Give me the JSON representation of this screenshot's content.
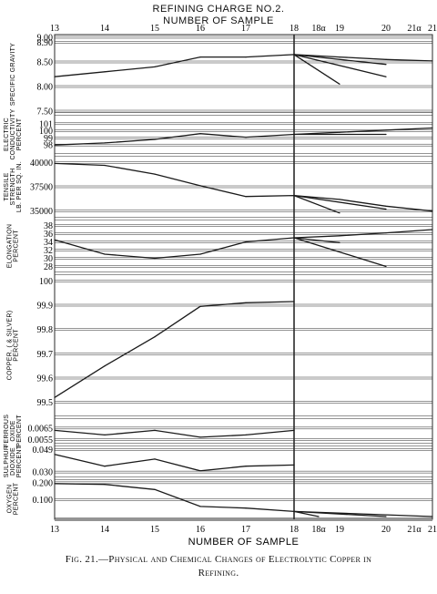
{
  "header": {
    "title": "REFINING CHARGE NO.2.",
    "subtitle": "NUMBER OF SAMPLE"
  },
  "caption": {
    "line1": "Fig. 21.—Physical and Chemical Changes of Electrolytic Copper in",
    "line2": "Refining."
  },
  "colors": {
    "line": "#1a1a1a",
    "grid": "#2a2a2a"
  },
  "chart_data": {
    "type": "line",
    "xlabel": "NUMBER OF SAMPLE",
    "x_categories": [
      "13",
      "14",
      "15",
      "16",
      "17",
      "18",
      "18α",
      "19",
      "20",
      "21α",
      "21"
    ],
    "top_x_labels": [
      "13",
      "14",
      "15",
      "16",
      "17",
      "18",
      "18α",
      "19",
      "20",
      "21α",
      "21"
    ],
    "panels": [
      {
        "id": "sg",
        "ylabel": [
          "SPECIFIC GRAVITY"
        ],
        "ylim": [
          7.5,
          9.0
        ],
        "ticks": [
          "9.00",
          "8.90",
          "8.50",
          "8.00",
          "7.50"
        ],
        "tick_values": [
          9.0,
          8.9,
          8.5,
          8.0,
          7.5
        ],
        "series": [
          {
            "x": [
              "13",
              "14",
              "15",
              "16",
              "17",
              "18",
              "19",
              "20",
              "21"
            ],
            "y": [
              8.2,
              8.3,
              8.4,
              8.6,
              8.6,
              8.65,
              8.6,
              8.55,
              8.52
            ]
          },
          {
            "x": [
              "18",
              "19"
            ],
            "y": [
              8.65,
              8.05
            ]
          },
          {
            "x": [
              "18",
              "20"
            ],
            "y": [
              8.65,
              8.2
            ]
          },
          {
            "x": [
              "18",
              "20"
            ],
            "y": [
              8.65,
              8.45
            ]
          }
        ]
      },
      {
        "id": "ec",
        "ylabel": [
          "ELECTRIC",
          "CONDUCTIVITY",
          "PERCENT"
        ],
        "ylim": [
          97,
          102
        ],
        "ticks": [
          "101",
          "100",
          "99",
          "98"
        ],
        "tick_values": [
          101,
          100,
          99,
          98
        ],
        "series": [
          {
            "x": [
              "13",
              "14",
              "15",
              "16",
              "17",
              "18",
              "19",
              "20",
              "21"
            ],
            "y": [
              98.0,
              98.3,
              98.8,
              99.6,
              99.1,
              99.5,
              99.8,
              100.1,
              100.4
            ]
          },
          {
            "x": [
              "18",
              "20"
            ],
            "y": [
              99.5,
              99.5
            ]
          }
        ]
      },
      {
        "id": "ts",
        "ylabel": [
          "TENSILE",
          "STRENGTH",
          "LB. PER SQ. IN."
        ],
        "ylim": [
          34500,
          40500
        ],
        "ticks": [
          "40000",
          "37500",
          "35000"
        ],
        "tick_values": [
          40000,
          37500,
          35000
        ],
        "series": [
          {
            "x": [
              "13",
              "14",
              "15",
              "16",
              "17",
              "18",
              "19",
              "20",
              "21"
            ],
            "y": [
              39900,
              39700,
              38800,
              37600,
              36500,
              36600,
              36200,
              35500,
              35000
            ]
          },
          {
            "x": [
              "18",
              "19"
            ],
            "y": [
              36600,
              34800
            ]
          },
          {
            "x": [
              "18",
              "20"
            ],
            "y": [
              36600,
              35200
            ]
          }
        ]
      },
      {
        "id": "el",
        "ylabel": [
          "ELONGATION",
          "PERCENT"
        ],
        "ylim": [
          27,
          39
        ],
        "ticks": [
          "38",
          "36",
          "34",
          "32",
          "30",
          "28"
        ],
        "tick_values": [
          38,
          36,
          34,
          32,
          30,
          28
        ],
        "series": [
          {
            "x": [
              "13",
              "14",
              "15",
              "16",
              "17",
              "18",
              "19",
              "20",
              "21"
            ],
            "y": [
              34.5,
              31.0,
              30.0,
              31.0,
              34.0,
              35.0,
              35.5,
              36.2,
              37.0
            ]
          },
          {
            "x": [
              "18",
              "19"
            ],
            "y": [
              35.0,
              33.8
            ]
          },
          {
            "x": [
              "18",
              "20"
            ],
            "y": [
              35.0,
              28.0
            ]
          }
        ]
      },
      {
        "id": "cu",
        "ylabel": [
          "COPPER, ( & SILVER)",
          "PERCENT"
        ],
        "ylim": [
          99.45,
          100.02
        ],
        "ticks": [
          "100",
          "99.9",
          "99.8",
          "99.7",
          "99.6",
          "99.5"
        ],
        "tick_values": [
          100.0,
          99.9,
          99.8,
          99.7,
          99.6,
          99.5
        ],
        "series": [
          {
            "x": [
              "13",
              "14",
              "15",
              "16",
              "17",
              "18"
            ],
            "y": [
              99.52,
              99.65,
              99.77,
              99.895,
              99.91,
              99.915
            ]
          }
        ]
      },
      {
        "id": "fe",
        "ylabel": [
          "FERROUS",
          "OXIDE",
          "PERCENT"
        ],
        "ylim": [
          0.0053,
          0.0072
        ],
        "ticks": [
          "0.0065",
          "0.0055"
        ],
        "tick_values": [
          0.0065,
          0.0055
        ],
        "series": [
          {
            "x": [
              "13",
              "14",
              "15",
              "16",
              "17",
              "18"
            ],
            "y": [
              0.0063,
              0.0059,
              0.0063,
              0.0057,
              0.0059,
              0.0063
            ]
          }
        ]
      },
      {
        "id": "so",
        "ylabel": [
          "SULPHUR",
          "DIOXIDE",
          "PERCENT"
        ],
        "ylim": [
          0.027,
          0.051
        ],
        "ticks": [
          "0.049",
          "0.030"
        ],
        "tick_values": [
          0.049,
          0.03
        ],
        "series": [
          {
            "x": [
              "13",
              "14",
              "15",
              "16",
              "17",
              "18"
            ],
            "y": [
              0.045,
              0.035,
              0.041,
              0.031,
              0.035,
              0.036
            ]
          }
        ]
      },
      {
        "id": "ox",
        "ylabel": [
          "OXYGEN",
          "PERCENT"
        ],
        "ylim": [
          0.0,
          0.21
        ],
        "ticks": [
          "0.200",
          "0.100"
        ],
        "tick_values": [
          0.2,
          0.1
        ],
        "series": [
          {
            "x": [
              "13",
              "14",
              "15",
              "16",
              "17",
              "18",
              "21"
            ],
            "y": [
              0.195,
              0.19,
              0.16,
              0.06,
              0.05,
              0.03,
              0.0
            ]
          },
          {
            "x": [
              "18",
              "18α"
            ],
            "y": [
              0.03,
              0.0
            ]
          },
          {
            "x": [
              "18",
              "20"
            ],
            "y": [
              0.03,
              0.0
            ]
          }
        ]
      }
    ]
  }
}
